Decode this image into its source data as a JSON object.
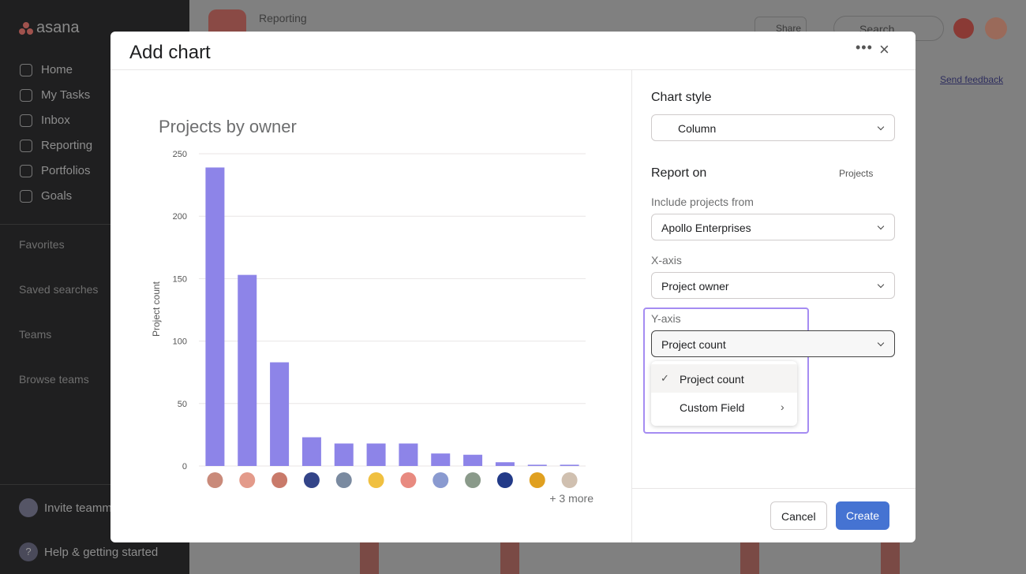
{
  "sidebar": {
    "brand": "asana",
    "nav": [
      "Home",
      "My Tasks",
      "Inbox",
      "Reporting",
      "Portfolios",
      "Goals"
    ],
    "sections": [
      "Favorites",
      "Saved searches",
      "Teams",
      "Browse teams"
    ],
    "invite": "Invite teamm",
    "help": "Help & getting started"
  },
  "background": {
    "breadcrumb": "Reporting",
    "share": "Share",
    "search": "Search",
    "feedback": "Send feedback"
  },
  "modal": {
    "title": "Add chart",
    "panel": {
      "chart_style_label": "Chart style",
      "chart_style": "Column",
      "report_on_label": "Report on",
      "report_on": "Projects",
      "include_label": "Include projects from",
      "include": "Apollo Enterprises",
      "x_axis_label": "X-axis",
      "x_axis": "Project owner",
      "y_axis_label": "Y-axis",
      "y_axis": "Project count",
      "menu": [
        "Project count",
        "Custom Field"
      ]
    },
    "more": "+ 3 more",
    "cancel": "Cancel",
    "create": "Create"
  },
  "chart_data": {
    "type": "bar",
    "title": "Projects by owner",
    "y_label": "Project count",
    "categories": [
      null,
      null,
      null,
      null,
      null,
      null,
      null,
      null,
      null,
      null,
      null,
      null
    ],
    "values": [
      239,
      153,
      83,
      23,
      18,
      18,
      18,
      10,
      9,
      3,
      1,
      1
    ],
    "color": "#8d84e8",
    "ylim": [
      0,
      250
    ],
    "yticks": [
      0,
      50,
      100,
      150,
      200,
      250
    ],
    "grid": true
  }
}
